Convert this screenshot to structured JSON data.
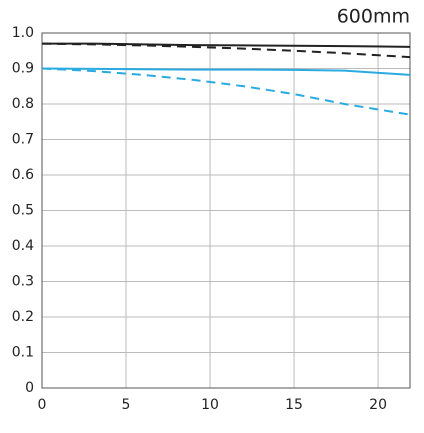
{
  "chart_data": {
    "type": "line",
    "title": "600mm",
    "x": [
      0,
      3,
      6,
      9,
      12,
      15,
      18,
      21.9
    ],
    "series": [
      {
        "color": "#222222",
        "dashed": false,
        "values": [
          0.97,
          0.97,
          0.968,
          0.966,
          0.965,
          0.964,
          0.963,
          0.961
        ]
      },
      {
        "color": "#222222",
        "dashed": true,
        "values": [
          0.97,
          0.968,
          0.965,
          0.961,
          0.956,
          0.95,
          0.943,
          0.932
        ]
      },
      {
        "color": "#29abe2",
        "dashed": false,
        "values": [
          0.9,
          0.899,
          0.898,
          0.897,
          0.897,
          0.896,
          0.894,
          0.882
        ]
      },
      {
        "color": "#29abe2",
        "dashed": true,
        "values": [
          0.9,
          0.893,
          0.882,
          0.868,
          0.85,
          0.828,
          0.8,
          0.77
        ]
      }
    ],
    "xlim": [
      0,
      21.9
    ],
    "xticks": [
      0,
      5,
      10,
      15,
      20
    ],
    "ylim": [
      0,
      1
    ],
    "yticks": [
      0,
      0.1,
      0.2,
      0.3,
      0.4,
      0.5,
      0.6,
      0.7,
      0.8,
      0.9,
      {
        "value": 1,
        "label": "1.0"
      }
    ],
    "grid": true
  }
}
